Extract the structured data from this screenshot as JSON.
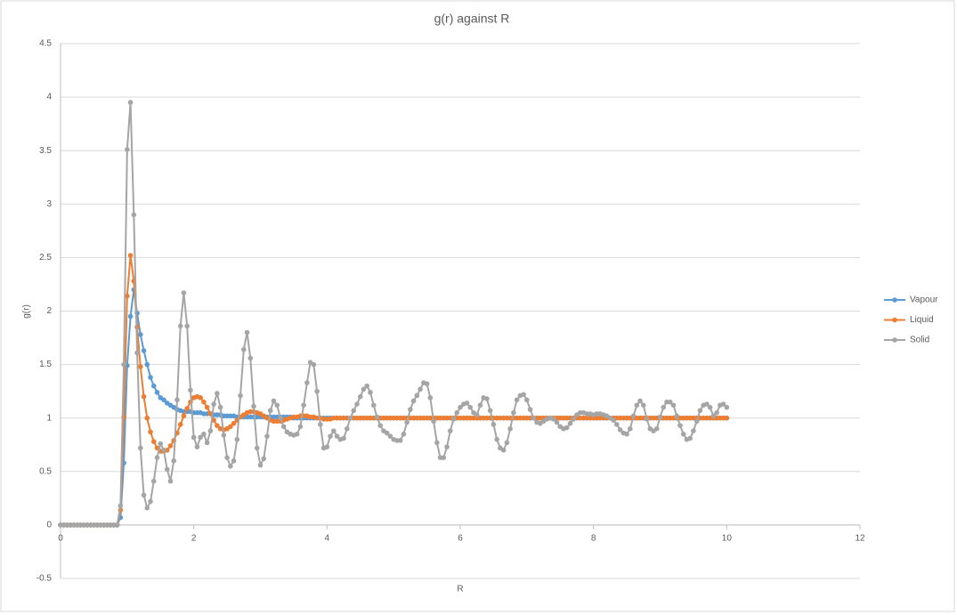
{
  "chart_data": {
    "type": "line",
    "title": "g(r) against R",
    "x_label": "R",
    "y_label": "g(r)",
    "x": [
      0,
      0.05,
      0.1,
      0.15,
      0.2,
      0.25,
      0.3,
      0.35,
      0.4,
      0.45,
      0.5,
      0.55,
      0.6,
      0.65,
      0.7,
      0.75,
      0.8,
      0.85,
      0.9,
      0.95,
      1,
      1.05,
      1.1,
      1.15,
      1.2,
      1.25,
      1.3,
      1.35,
      1.4,
      1.45,
      1.5,
      1.55,
      1.6,
      1.65,
      1.7,
      1.75,
      1.8,
      1.85,
      1.9,
      1.95,
      2,
      2.05,
      2.1,
      2.15,
      2.2,
      2.25,
      2.3,
      2.35,
      2.4,
      2.45,
      2.5,
      2.55,
      2.6,
      2.65,
      2.7,
      2.75,
      2.8,
      2.85,
      2.9,
      2.95,
      3,
      3.05,
      3.1,
      3.15,
      3.2,
      3.25,
      3.3,
      3.35,
      3.4,
      3.45,
      3.5,
      3.55,
      3.6,
      3.65,
      3.7,
      3.75,
      3.8,
      3.85,
      3.9,
      3.95,
      4,
      4.05,
      4.1,
      4.15,
      4.2,
      4.25,
      4.3,
      4.35,
      4.4,
      4.45,
      4.5,
      4.55,
      4.6,
      4.65,
      4.7,
      4.75,
      4.8,
      4.85,
      4.9,
      4.95,
      5,
      5.05,
      5.1,
      5.15,
      5.2,
      5.25,
      5.3,
      5.35,
      5.4,
      5.45,
      5.5,
      5.55,
      5.6,
      5.65,
      5.7,
      5.75,
      5.8,
      5.85,
      5.9,
      5.95,
      6,
      6.05,
      6.1,
      6.15,
      6.2,
      6.25,
      6.3,
      6.35,
      6.4,
      6.45,
      6.5,
      6.55,
      6.6,
      6.65,
      6.7,
      6.75,
      6.8,
      6.85,
      6.9,
      6.95,
      7,
      7.05,
      7.1,
      7.15,
      7.2,
      7.25,
      7.3,
      7.35,
      7.4,
      7.45,
      7.5,
      7.55,
      7.6,
      7.65,
      7.7,
      7.75,
      7.8,
      7.85,
      7.9,
      7.95,
      8,
      8.05,
      8.1,
      8.15,
      8.2,
      8.25,
      8.3,
      8.35,
      8.4,
      8.45,
      8.5,
      8.55,
      8.6,
      8.65,
      8.7,
      8.75,
      8.8,
      8.85,
      8.9,
      8.95,
      9,
      9.05,
      9.1,
      9.15,
      9.2,
      9.25,
      9.3,
      9.35,
      9.4,
      9.45,
      9.5,
      9.55,
      9.6,
      9.65,
      9.7,
      9.75,
      9.8,
      9.85,
      9.9,
      9.95,
      10
    ],
    "series": [
      {
        "name": "Vapour",
        "color": "#5b9bd5",
        "values": [
          0,
          0,
          0,
          0,
          0,
          0,
          0,
          0,
          0,
          0,
          0,
          0,
          0,
          0,
          0,
          0,
          0,
          0,
          0.07,
          0.58,
          1.49,
          1.95,
          2.2,
          1.98,
          1.78,
          1.63,
          1.5,
          1.38,
          1.3,
          1.24,
          1.19,
          1.17,
          1.14,
          1.12,
          1.1,
          1.08,
          1.07,
          1.06,
          1.06,
          1.06,
          1.05,
          1.05,
          1.05,
          1.04,
          1.04,
          1.04,
          1.03,
          1.03,
          1.03,
          1.02,
          1.02,
          1.02,
          1.02,
          1.01,
          1.01,
          1.01,
          1.01,
          1.01,
          1.01,
          1.01,
          1.01,
          1.01,
          1.01,
          1.01,
          1.01,
          1.01,
          1.01,
          1.01,
          1.01,
          1.01,
          1,
          1,
          1,
          1,
          1,
          1,
          1,
          1,
          1,
          1,
          1,
          1,
          1,
          1,
          1,
          1,
          1,
          1,
          1,
          1,
          1,
          1,
          1,
          1,
          1,
          1,
          1,
          1,
          1,
          1,
          1,
          1,
          1,
          1,
          1,
          1,
          1,
          1,
          1,
          1,
          1,
          1,
          1,
          1,
          1,
          1,
          1,
          1,
          1,
          1,
          1,
          1,
          1,
          1,
          1,
          1,
          1,
          1,
          1,
          1,
          1,
          1,
          1,
          1,
          1,
          1,
          1,
          1,
          1,
          1,
          1,
          1,
          1,
          1,
          1,
          1,
          1,
          1,
          1,
          1,
          1,
          1,
          1,
          1,
          1,
          1,
          1,
          1,
          1,
          1,
          1,
          1,
          1,
          1,
          1,
          1,
          1,
          1,
          1,
          1,
          1,
          1,
          1,
          1,
          1,
          1,
          1,
          1,
          1,
          1,
          1,
          1,
          1,
          1,
          1,
          1,
          1,
          1,
          1,
          1,
          1,
          1,
          1,
          1,
          1,
          1,
          1,
          1,
          1,
          1,
          1
        ]
      },
      {
        "name": "Liquid",
        "color": "#ed7d31",
        "values": [
          0,
          0,
          0,
          0,
          0,
          0,
          0,
          0,
          0,
          0,
          0,
          0,
          0,
          0,
          0,
          0,
          0,
          0,
          0.14,
          1.01,
          2.14,
          2.52,
          2.28,
          1.85,
          1.48,
          1.2,
          1.0,
          0.87,
          0.78,
          0.72,
          0.69,
          0.69,
          0.7,
          0.74,
          0.79,
          0.86,
          0.94,
          1.02,
          1.09,
          1.15,
          1.19,
          1.2,
          1.19,
          1.15,
          1.1,
          1.04,
          0.98,
          0.93,
          0.9,
          0.89,
          0.9,
          0.92,
          0.95,
          0.98,
          1.01,
          1.03,
          1.05,
          1.06,
          1.06,
          1.05,
          1.04,
          1.02,
          1,
          0.98,
          0.97,
          0.97,
          0.97,
          0.98,
          0.99,
          1,
          1.01,
          1.01,
          1.02,
          1.02,
          1.02,
          1.01,
          1.01,
          1,
          1,
          0.99,
          0.99,
          0.99,
          1,
          1,
          1,
          1,
          1,
          1,
          1,
          1,
          1,
          1,
          1,
          1,
          1,
          1,
          1,
          1,
          1,
          1,
          1,
          1,
          1,
          1,
          1,
          1,
          1,
          1,
          1,
          1,
          1,
          1,
          1,
          1,
          1,
          1,
          1,
          1,
          1,
          1,
          1,
          1,
          1,
          1,
          1,
          1,
          1,
          1,
          1,
          1,
          1,
          1,
          1,
          1,
          1,
          1,
          1,
          1,
          1,
          1,
          1,
          1,
          1,
          1,
          1,
          1,
          1,
          1,
          1,
          1,
          1,
          1,
          1,
          1,
          1,
          1,
          1,
          1,
          1,
          1,
          1,
          1,
          1,
          1,
          1,
          1,
          1,
          1,
          1,
          1,
          1,
          1,
          1,
          1,
          1,
          1,
          1,
          1,
          1,
          1,
          1,
          1,
          1,
          1,
          1,
          1,
          1,
          1,
          1,
          1,
          1,
          1,
          1,
          1,
          1,
          1,
          1,
          1,
          1,
          1,
          1
        ]
      },
      {
        "name": "Solid",
        "color": "#a5a5a5",
        "values": [
          0,
          0,
          0,
          0,
          0,
          0,
          0,
          0,
          0,
          0,
          0,
          0,
          0,
          0,
          0,
          0,
          0,
          0,
          0.18,
          1.5,
          3.51,
          3.95,
          2.9,
          1.61,
          0.72,
          0.28,
          0.16,
          0.22,
          0.41,
          0.63,
          0.76,
          0.7,
          0.52,
          0.41,
          0.6,
          1.17,
          1.86,
          2.17,
          1.86,
          1.26,
          0.82,
          0.73,
          0.82,
          0.85,
          0.77,
          0.88,
          1.13,
          1.23,
          1.1,
          0.84,
          0.63,
          0.55,
          0.6,
          0.8,
          1.21,
          1.64,
          1.8,
          1.56,
          1.11,
          0.72,
          0.56,
          0.62,
          0.83,
          1.07,
          1.16,
          1.12,
          1,
          0.92,
          0.87,
          0.85,
          0.84,
          0.85,
          0.92,
          1.12,
          1.33,
          1.52,
          1.5,
          1.25,
          0.94,
          0.72,
          0.73,
          0.83,
          0.88,
          0.83,
          0.8,
          0.81,
          0.9,
          1,
          1.07,
          1.13,
          1.2,
          1.27,
          1.3,
          1.24,
          1.12,
          1.01,
          0.93,
          0.88,
          0.86,
          0.83,
          0.8,
          0.79,
          0.79,
          0.85,
          0.96,
          1.08,
          1.16,
          1.21,
          1.27,
          1.33,
          1.32,
          1.19,
          0.97,
          0.77,
          0.63,
          0.63,
          0.73,
          0.88,
          0.99,
          1.05,
          1.1,
          1.13,
          1.14,
          1.1,
          1.05,
          1.03,
          1.12,
          1.19,
          1.18,
          1.07,
          0.94,
          0.8,
          0.72,
          0.7,
          0.77,
          0.9,
          1.05,
          1.17,
          1.21,
          1.22,
          1.17,
          1.08,
          1,
          0.96,
          0.95,
          0.97,
          0.99,
          1,
          0.99,
          0.96,
          0.92,
          0.9,
          0.91,
          0.95,
          0.99,
          1.03,
          1.05,
          1.05,
          1.04,
          1.04,
          1.03,
          1.04,
          1.04,
          1.03,
          1.02,
          1,
          0.98,
          0.94,
          0.89,
          0.86,
          0.85,
          0.9,
          1.02,
          1.12,
          1.16,
          1.12,
          0.99,
          0.9,
          0.88,
          0.9,
          1.01,
          1.1,
          1.15,
          1.15,
          1.12,
          1.02,
          0.93,
          0.85,
          0.8,
          0.81,
          0.88,
          0.97,
          1.07,
          1.12,
          1.13,
          1.1,
          1.02,
          1.05,
          1.12,
          1.13,
          1.1
        ]
      }
    ],
    "xlim": [
      0,
      12
    ],
    "xticks": [
      0,
      2,
      4,
      6,
      8,
      10,
      12
    ],
    "ylim": [
      -0.5,
      4.5
    ],
    "yticks": [
      -0.5,
      0,
      0.5,
      1,
      1.5,
      2,
      2.5,
      3,
      3.5,
      4,
      4.5
    ],
    "grid": true,
    "legend": "right"
  }
}
